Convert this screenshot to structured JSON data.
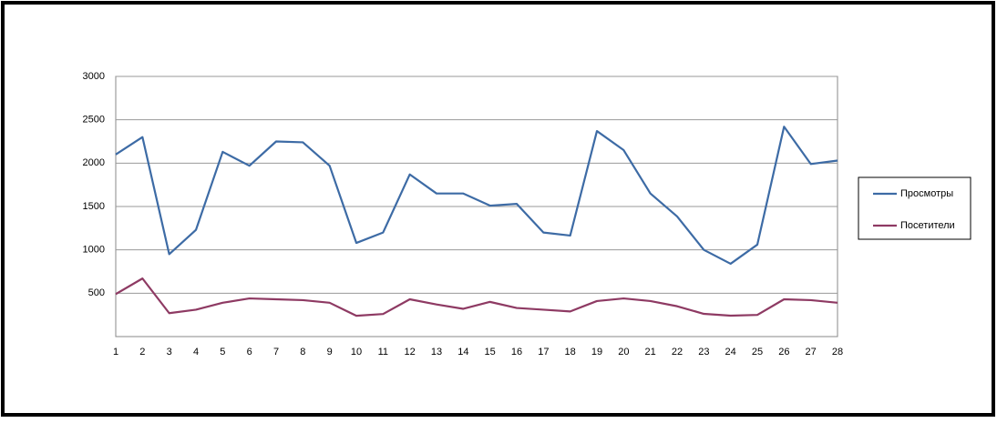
{
  "chart_data": {
    "type": "line",
    "categories": [
      "1",
      "2",
      "3",
      "4",
      "5",
      "6",
      "7",
      "8",
      "9",
      "10",
      "11",
      "12",
      "13",
      "14",
      "15",
      "16",
      "17",
      "18",
      "19",
      "20",
      "21",
      "22",
      "23",
      "24",
      "25",
      "26",
      "27",
      "28"
    ],
    "series": [
      {
        "name": "Просмотры",
        "color": "#3d6ba5",
        "values": [
          2100,
          2300,
          950,
          1230,
          2130,
          1970,
          2250,
          2240,
          1970,
          1080,
          1200,
          1870,
          1650,
          1650,
          1510,
          1530,
          1200,
          1165,
          2370,
          2150,
          1650,
          1385,
          1000,
          840,
          1060,
          2420,
          1990,
          2030
        ]
      },
      {
        "name": "Посетители",
        "color": "#8e3a63",
        "values": [
          490,
          670,
          270,
          310,
          390,
          440,
          430,
          420,
          390,
          240,
          260,
          430,
          370,
          320,
          400,
          330,
          310,
          290,
          410,
          440,
          410,
          350,
          262,
          241,
          250,
          430,
          420,
          390
        ]
      }
    ],
    "ylim": [
      0,
      3000
    ],
    "yticks": [
      500,
      1000,
      1500,
      2000,
      2500,
      3000
    ],
    "grid": true,
    "legend": "right"
  }
}
